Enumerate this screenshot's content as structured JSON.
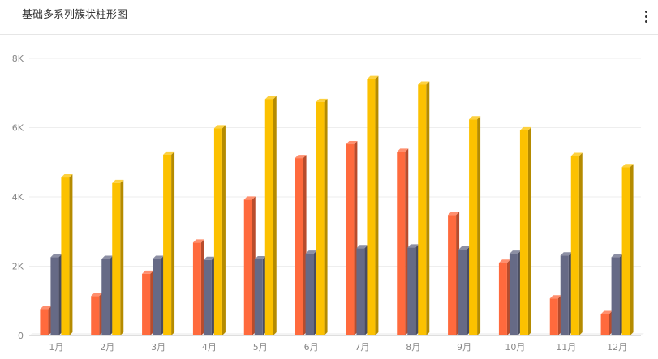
{
  "header": {
    "title": "基础多系列簇状柱形图",
    "menu_icon": "more-vertical-icon"
  },
  "chart_data": {
    "type": "bar",
    "style": "3d-clustered",
    "title": "基础多系列簇状柱形图",
    "xlabel": "",
    "ylabel": "",
    "categories": [
      "1月",
      "2月",
      "3月",
      "4月",
      "5月",
      "6月",
      "7月",
      "8月",
      "9月",
      "10月",
      "11月",
      "12月"
    ],
    "ylim": [
      0,
      8000
    ],
    "yticks": [
      0,
      2000,
      4000,
      6000,
      8000
    ],
    "ytick_labels": [
      "0",
      "2K",
      "4K",
      "6K",
      "8K"
    ],
    "grid": true,
    "legend": "none",
    "series": [
      {
        "color": "#ff6a3d",
        "values": [
          760,
          1140,
          1780,
          2680,
          3920,
          5120,
          5520,
          5300,
          3480,
          2100,
          1070,
          620
        ]
      },
      {
        "color": "#666a86",
        "values": [
          2260,
          2210,
          2210,
          2180,
          2200,
          2360,
          2520,
          2540,
          2480,
          2360,
          2310,
          2260
        ]
      },
      {
        "color": "#fcc100",
        "values": [
          4560,
          4400,
          5220,
          5980,
          6820,
          6740,
          7400,
          7240,
          6240,
          5920,
          5180,
          4860
        ]
      }
    ]
  }
}
